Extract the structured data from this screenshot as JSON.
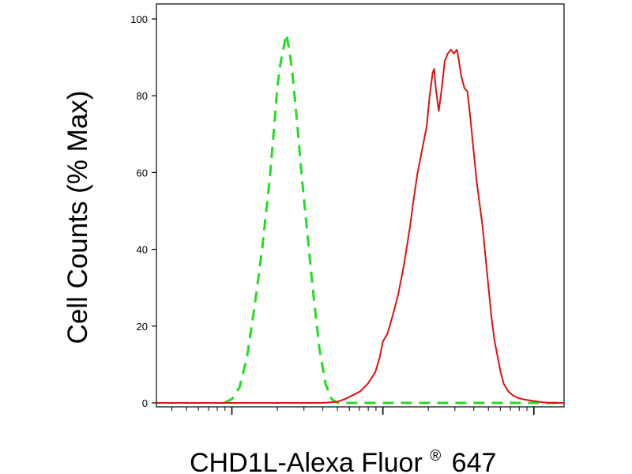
{
  "chart_data": {
    "type": "line",
    "title": "",
    "xlabel": "CHD1L-Alexa Fluor",
    "xlabel_superscript": "®",
    "xlabel_suffix": "647",
    "ylabel": "Cell Counts (% Max)",
    "ylim": [
      0,
      100
    ],
    "y_ticks": [
      "0",
      "20",
      "40",
      "60",
      "80",
      "100"
    ],
    "x_scale": "log",
    "x_range_log": [
      -0.5,
      2.2
    ],
    "x_major_decades": [
      0,
      1,
      2
    ],
    "grid": false,
    "legend": "none",
    "series": [
      {
        "color": "#22dd22",
        "line_style": "dashed",
        "points": [
          [
            -0.05,
            0
          ],
          [
            0.0,
            1
          ],
          [
            0.05,
            4
          ],
          [
            0.1,
            12
          ],
          [
            0.15,
            25
          ],
          [
            0.2,
            40
          ],
          [
            0.25,
            58
          ],
          [
            0.28,
            72
          ],
          [
            0.3,
            82
          ],
          [
            0.32,
            88
          ],
          [
            0.34,
            92
          ],
          [
            0.36,
            96
          ],
          [
            0.38,
            92
          ],
          [
            0.4,
            86
          ],
          [
            0.43,
            74
          ],
          [
            0.46,
            60
          ],
          [
            0.5,
            44
          ],
          [
            0.54,
            28
          ],
          [
            0.58,
            14
          ],
          [
            0.62,
            5
          ],
          [
            0.66,
            1
          ],
          [
            0.7,
            0
          ],
          [
            2.2,
            0
          ]
        ]
      },
      {
        "color": "#dd1111",
        "line_style": "solid",
        "points": [
          [
            -0.5,
            0
          ],
          [
            0.6,
            0
          ],
          [
            0.7,
            0.3
          ],
          [
            0.75,
            1
          ],
          [
            0.8,
            2
          ],
          [
            0.85,
            3
          ],
          [
            0.9,
            5
          ],
          [
            0.95,
            8
          ],
          [
            0.98,
            12
          ],
          [
            1.0,
            16
          ],
          [
            1.03,
            18
          ],
          [
            1.06,
            22
          ],
          [
            1.1,
            28
          ],
          [
            1.14,
            36
          ],
          [
            1.18,
            46
          ],
          [
            1.2,
            52
          ],
          [
            1.23,
            60
          ],
          [
            1.26,
            66
          ],
          [
            1.29,
            72
          ],
          [
            1.31,
            80
          ],
          [
            1.33,
            86
          ],
          [
            1.34,
            87
          ],
          [
            1.35,
            82
          ],
          [
            1.37,
            76
          ],
          [
            1.39,
            82
          ],
          [
            1.41,
            89
          ],
          [
            1.43,
            91
          ],
          [
            1.45,
            92
          ],
          [
            1.47,
            91
          ],
          [
            1.49,
            92
          ],
          [
            1.5,
            90
          ],
          [
            1.52,
            85
          ],
          [
            1.54,
            82
          ],
          [
            1.56,
            81
          ],
          [
            1.58,
            74
          ],
          [
            1.6,
            66
          ],
          [
            1.62,
            58
          ],
          [
            1.64,
            52
          ],
          [
            1.66,
            46
          ],
          [
            1.68,
            38
          ],
          [
            1.7,
            30
          ],
          [
            1.72,
            22
          ],
          [
            1.74,
            16
          ],
          [
            1.76,
            12
          ],
          [
            1.78,
            8
          ],
          [
            1.8,
            5
          ],
          [
            1.83,
            3
          ],
          [
            1.86,
            2
          ],
          [
            1.9,
            1.2
          ],
          [
            1.95,
            0.8
          ],
          [
            2.0,
            0.5
          ],
          [
            2.05,
            0.2
          ],
          [
            2.1,
            0
          ],
          [
            2.2,
            0
          ]
        ]
      }
    ]
  }
}
